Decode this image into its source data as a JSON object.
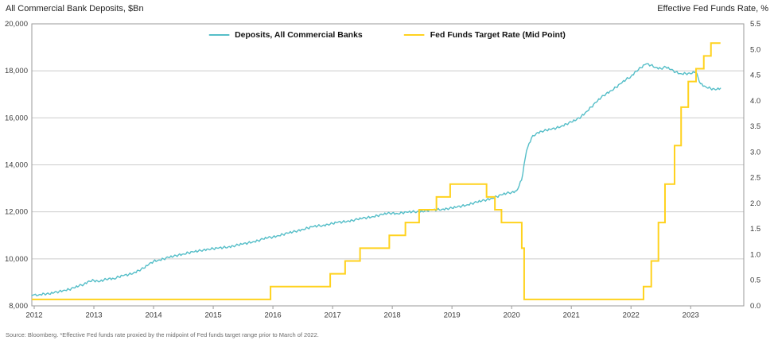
{
  "header": {
    "left_title": "All Commercial Bank Deposits, $Bn",
    "right_title": "Effective Fed Funds Rate, %"
  },
  "legend": [
    {
      "label": "Deposits, All Commercial Banks",
      "color": "#55BEC8"
    },
    {
      "label": "Fed Funds Target Rate (Mid Point)",
      "color": "#FFD21E"
    }
  ],
  "footer": {
    "source_note": "Source: Bloomberg. *Effective Fed funds rate proxied by the midpoint of Fed funds target range prior to March of 2022."
  },
  "style": {
    "grid_color": "#cbcbcb",
    "border_color": "#9a9a9a",
    "tick_color": "#9a9a9a",
    "axis_text_color": "#3a3a3a",
    "deposits_color": "#55BEC8",
    "fed_funds_color": "#FFD21E",
    "deposits_stroke_width": 1.4,
    "fed_funds_stroke_width": 2,
    "texture_amplitude": 50
  },
  "chart_data": {
    "type": "line",
    "title": "",
    "x_axis": {
      "xlim": [
        2011.96,
        2023.89
      ],
      "ticks": [
        2012,
        2013,
        2014,
        2015,
        2016,
        2017,
        2018,
        2019,
        2020,
        2021,
        2022,
        2023
      ],
      "labels": [
        "2012",
        "2013",
        "2014",
        "2015",
        "2016",
        "2017",
        "2018",
        "2019",
        "2020",
        "2021",
        "2022",
        "2023"
      ]
    },
    "y_axis_left": {
      "title": "All Commercial Bank Deposits, $Bn",
      "ylim": [
        8000,
        20000
      ],
      "ticks": [
        8000,
        10000,
        12000,
        14000,
        16000,
        18000,
        20000
      ],
      "labels": [
        "8,000",
        "10,000",
        "12,000",
        "14,000",
        "16,000",
        "18,000",
        "20,000"
      ],
      "gridlines": [
        10000,
        12000,
        14000,
        16000,
        18000
      ]
    },
    "y_axis_right": {
      "title": "Effective Fed Funds Rate, %",
      "ylim": [
        0,
        5.5
      ],
      "ticks": [
        0.0,
        0.5,
        1.0,
        1.5,
        2.0,
        2.5,
        3.0,
        3.5,
        4.0,
        4.5,
        5.0,
        5.5
      ],
      "labels": [
        "0.0",
        "0.5",
        "1.0",
        "1.5",
        "2.0",
        "2.5",
        "3.0",
        "3.5",
        "4.0",
        "4.5",
        "5.0",
        "5.5"
      ]
    },
    "series": [
      {
        "name": "Deposits, All Commercial Banks",
        "axis": "left",
        "draw": "line",
        "frequency": "monthly",
        "start_year": 2012,
        "values": [
          8440,
          8480,
          8520,
          8500,
          8560,
          8610,
          8670,
          8700,
          8760,
          8850,
          8920,
          9060,
          9080,
          9020,
          9100,
          9170,
          9160,
          9230,
          9290,
          9330,
          9410,
          9510,
          9600,
          9750,
          9900,
          9950,
          10000,
          10060,
          10100,
          10170,
          10210,
          10260,
          10290,
          10330,
          10380,
          10420,
          10430,
          10450,
          10480,
          10510,
          10550,
          10590,
          10630,
          10680,
          10730,
          10780,
          10840,
          10900,
          10930,
          10990,
          11040,
          11090,
          11140,
          11200,
          11260,
          11310,
          11360,
          11400,
          11420,
          11470,
          11500,
          11550,
          11570,
          11610,
          11640,
          11680,
          11720,
          11760,
          11800,
          11840,
          11880,
          11930,
          11950,
          11930,
          11960,
          11980,
          12000,
          12010,
          12030,
          12050,
          12070,
          12090,
          12110,
          12140,
          12160,
          12200,
          12250,
          12300,
          12360,
          12410,
          12460,
          12520,
          12580,
          12650,
          12720,
          12790,
          12830,
          12900,
          13350,
          14600,
          15150,
          15350,
          15430,
          15470,
          15510,
          15570,
          15650,
          15740,
          15820,
          15910,
          16060,
          16260,
          16460,
          16660,
          16860,
          17030,
          17160,
          17300,
          17460,
          17630,
          17760,
          17990,
          18130,
          18290,
          18240,
          18150,
          18100,
          18160,
          18050,
          17950,
          17880,
          17890,
          17870,
          17970,
          17450,
          17330,
          17250,
          17190,
          17260
        ]
      },
      {
        "name": "Fed Funds Target Rate (Mid Point)",
        "axis": "right",
        "draw": "step",
        "end_x": 2023.5,
        "points": [
          [
            2011.96,
            0.125
          ],
          [
            2015.96,
            0.375
          ],
          [
            2016.96,
            0.625
          ],
          [
            2017.21,
            0.875
          ],
          [
            2017.46,
            1.125
          ],
          [
            2017.95,
            1.375
          ],
          [
            2018.22,
            1.625
          ],
          [
            2018.45,
            1.875
          ],
          [
            2018.74,
            2.125
          ],
          [
            2018.97,
            2.375
          ],
          [
            2019.58,
            2.125
          ],
          [
            2019.72,
            1.875
          ],
          [
            2019.83,
            1.625
          ],
          [
            2020.17,
            1.125
          ],
          [
            2020.21,
            0.125
          ],
          [
            2022.21,
            0.375
          ],
          [
            2022.34,
            0.875
          ],
          [
            2022.46,
            1.625
          ],
          [
            2022.57,
            2.375
          ],
          [
            2022.73,
            3.125
          ],
          [
            2022.84,
            3.875
          ],
          [
            2022.96,
            4.375
          ],
          [
            2023.09,
            4.625
          ],
          [
            2023.22,
            4.875
          ],
          [
            2023.34,
            5.125
          ]
        ]
      }
    ]
  }
}
